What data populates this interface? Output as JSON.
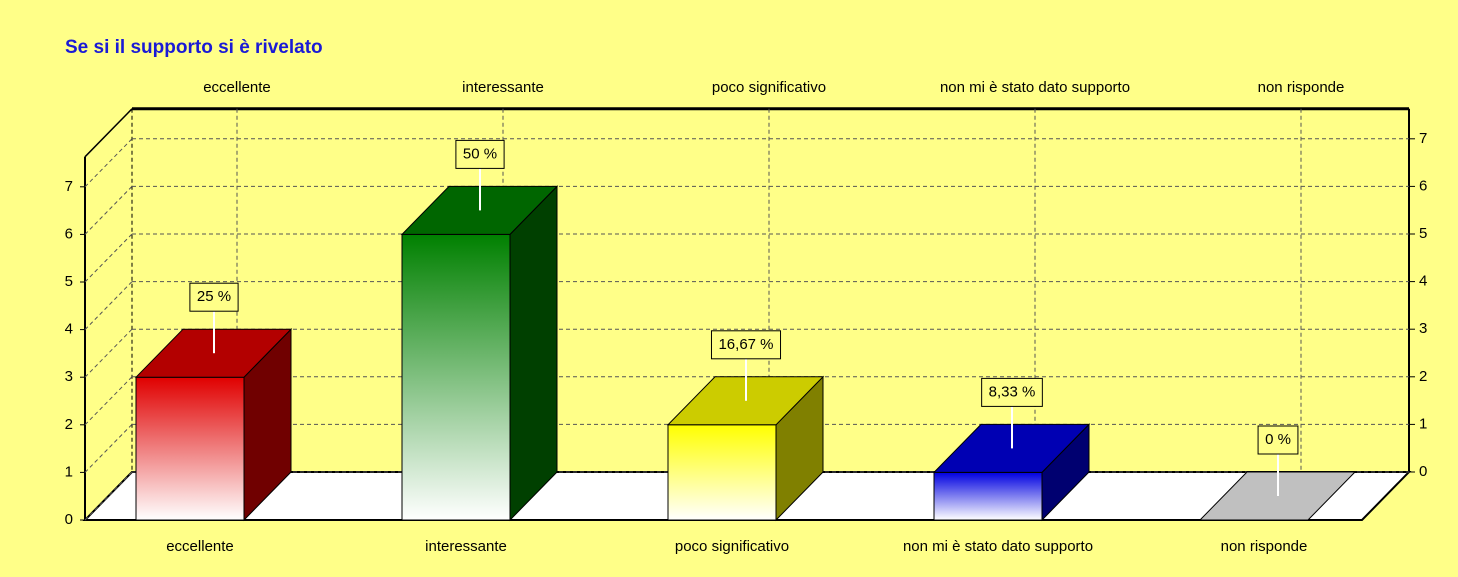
{
  "chart_data": {
    "type": "bar3d",
    "title": "Se si il supporto si è rivelato",
    "categories": [
      "eccellente",
      "interessante",
      "poco significativo",
      "non mi è stato dato supporto",
      "non risponde"
    ],
    "values": [
      3,
      6,
      2,
      1,
      0
    ],
    "percent_labels": [
      "25 %",
      "50 %",
      "16,67 %",
      "8,33 %",
      "0 %"
    ],
    "colors": [
      "#e00000",
      "#008000",
      "#ffff00",
      "#0000e0",
      "#c0c0c0"
    ],
    "ylim": [
      0,
      7
    ],
    "yticks": [
      0,
      1,
      2,
      3,
      4,
      5,
      6,
      7
    ],
    "grid": true
  }
}
